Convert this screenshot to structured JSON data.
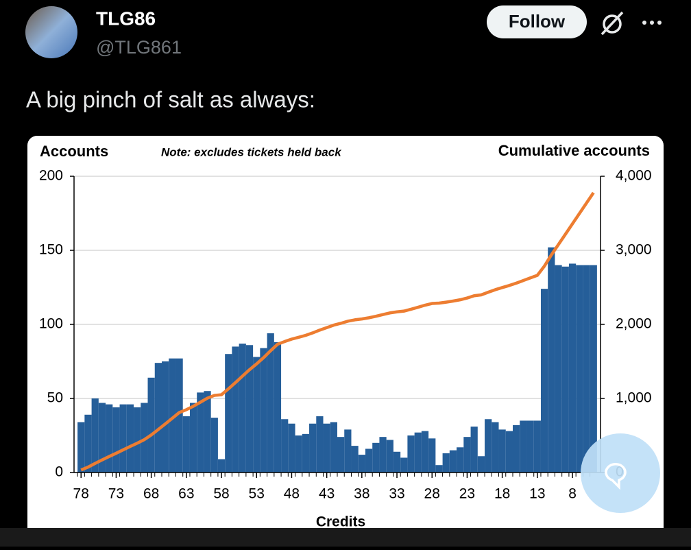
{
  "tweet": {
    "name": "TLG86",
    "handle": "@TLG861",
    "follow": "Follow",
    "text": "A big pinch of salt as always:"
  },
  "chart_data": {
    "type": "bar-line",
    "y_label": "Accounts",
    "note": "Note: excludes tickets held back",
    "y2_label": "Cumulative accounts",
    "x_label": "Credits",
    "x": [
      78,
      77,
      76,
      75,
      74,
      73,
      72,
      71,
      70,
      69,
      68,
      67,
      66,
      65,
      64,
      63,
      62,
      61,
      60,
      59,
      58,
      57,
      56,
      55,
      54,
      53,
      52,
      51,
      50,
      49,
      48,
      47,
      46,
      45,
      44,
      43,
      42,
      41,
      40,
      39,
      38,
      37,
      36,
      35,
      34,
      33,
      32,
      31,
      30,
      29,
      28,
      27,
      26,
      25,
      24,
      23,
      22,
      21,
      20,
      19,
      18,
      17,
      16,
      15,
      14,
      13,
      12,
      11,
      10,
      9,
      8,
      7,
      6,
      5
    ],
    "xlim": [
      79,
      4
    ],
    "xticks": [
      78,
      73,
      68,
      63,
      58,
      53,
      48,
      43,
      38,
      33,
      28,
      23,
      18,
      13,
      8
    ],
    "ylim": [
      0,
      200
    ],
    "yticks": [
      0,
      50,
      100,
      150,
      200
    ],
    "y2lim": [
      0,
      4000
    ],
    "y2ticks": [
      0,
      {
        "value": 1000,
        "label": "1,000"
      },
      {
        "value": 2000,
        "label": "2,000"
      },
      {
        "value": 3000,
        "label": "3,000"
      },
      {
        "value": 4000,
        "label": "4,000"
      }
    ],
    "grid": true,
    "series": [
      {
        "type": "bar",
        "color": "#255e99",
        "axis": "y",
        "values": [
          34,
          39,
          50,
          47,
          46,
          44,
          46,
          46,
          44,
          47,
          64,
          74,
          75,
          77,
          77,
          38,
          47,
          54,
          55,
          37,
          9,
          80,
          85,
          87,
          86,
          78,
          84,
          94,
          88,
          36,
          33,
          25,
          26,
          33,
          38,
          33,
          34,
          24,
          29,
          18,
          12,
          16,
          20,
          24,
          22,
          14,
          10,
          25,
          27,
          28,
          23,
          5,
          13,
          15,
          17,
          24,
          31,
          11,
          36,
          34,
          29,
          28,
          32,
          35,
          35,
          35,
          124,
          152,
          140,
          139,
          141,
          140,
          140,
          140
        ]
      },
      {
        "type": "line",
        "color": "#ed7d31",
        "axis": "y2",
        "values": [
          34,
          73,
          123,
          170,
          216,
          260,
          306,
          352,
          396,
          443,
          507,
          581,
          656,
          733,
          810,
          848,
          895,
          949,
          1004,
          1041,
          1050,
          1130,
          1215,
          1302,
          1388,
          1466,
          1550,
          1644,
          1732,
          1768,
          1801,
          1826,
          1852,
          1885,
          1923,
          1956,
          1990,
          2014,
          2043,
          2061,
          2073,
          2089,
          2109,
          2133,
          2155,
          2169,
          2179,
          2204,
          2231,
          2259,
          2282,
          2287,
          2300,
          2315,
          2332,
          2356,
          2387,
          2398,
          2434,
          2468,
          2497,
          2525,
          2557,
          2592,
          2627,
          2662,
          2786,
          2938,
          3078,
          3217,
          3358,
          3498,
          3638,
          3778
        ]
      }
    ]
  }
}
